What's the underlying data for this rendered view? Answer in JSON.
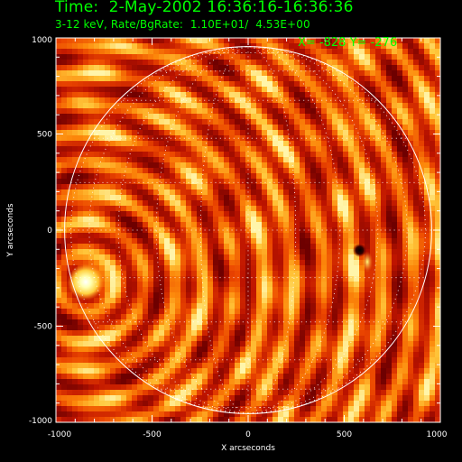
{
  "header": {
    "time_label": "Time:",
    "date": "2-May-2002",
    "time_range": "16:36:16-16:36:36",
    "energy_band": "3-12 keV,",
    "rate_label": "Rate/BgRate:",
    "rate_value": "1.10E+01/",
    "bg_rate_value": "4.53E+00"
  },
  "cursor": {
    "x_label": "X=",
    "x_value": "-828",
    "y_label": "Y=",
    "y_value": "-276"
  },
  "colors": {
    "header_text": "#00ff00",
    "axis": "#ffffff",
    "limb": "#ffffff",
    "background": "#000000"
  },
  "chart_data": {
    "type": "heatmap",
    "title": "",
    "xlabel": "X arcseconds",
    "ylabel": "Y arcseconds",
    "xlim": [
      -1000,
      1000
    ],
    "ylim": [
      -1000,
      1000
    ],
    "xticks": [
      -1000,
      -500,
      0,
      500,
      1000
    ],
    "yticks": [
      -1000,
      -500,
      0,
      500,
      1000
    ],
    "xtick_labels": [
      "-1000",
      "-500",
      "0",
      "500",
      "1000"
    ],
    "ytick_labels": [
      "-1000",
      "-500",
      "0",
      "500",
      "1000"
    ],
    "colormap": "red-temperature",
    "solar_limb_radius": 955,
    "grid": "heliographic, 15 degree spacing, dotted",
    "sources": [
      {
        "x": -845,
        "y": -270,
        "kind": "bright",
        "peak": 1.0
      },
      {
        "x": 580,
        "y": -105,
        "kind": "bright-dark pair",
        "peak": 0.7
      }
    ],
    "ring_center": [
      -845,
      -270
    ]
  }
}
